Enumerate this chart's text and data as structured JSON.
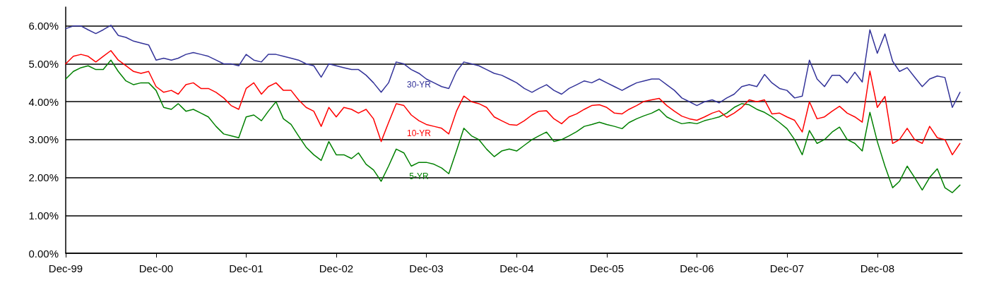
{
  "chart_data": {
    "type": "line",
    "x": [
      "1999-12",
      "2000-01",
      "2000-02",
      "2000-03",
      "2000-04",
      "2000-05",
      "2000-06",
      "2000-07",
      "2000-08",
      "2000-09",
      "2000-10",
      "2000-11",
      "2000-12",
      "2001-01",
      "2001-02",
      "2001-03",
      "2001-04",
      "2001-05",
      "2001-06",
      "2001-07",
      "2001-08",
      "2001-09",
      "2001-10",
      "2001-11",
      "2001-12",
      "2002-01",
      "2002-02",
      "2002-03",
      "2002-04",
      "2002-05",
      "2002-06",
      "2002-07",
      "2002-08",
      "2002-09",
      "2002-10",
      "2002-11",
      "2002-12",
      "2003-01",
      "2003-02",
      "2003-03",
      "2003-04",
      "2003-05",
      "2003-06",
      "2003-07",
      "2003-08",
      "2003-09",
      "2003-10",
      "2003-11",
      "2003-12",
      "2004-01",
      "2004-02",
      "2004-03",
      "2004-04",
      "2004-05",
      "2004-06",
      "2004-07",
      "2004-08",
      "2004-09",
      "2004-10",
      "2004-11",
      "2004-12",
      "2005-01",
      "2005-02",
      "2005-03",
      "2005-04",
      "2005-05",
      "2005-06",
      "2005-07",
      "2005-08",
      "2005-09",
      "2005-10",
      "2005-11",
      "2005-12",
      "2006-01",
      "2006-02",
      "2006-03",
      "2006-04",
      "2006-05",
      "2006-06",
      "2006-07",
      "2006-08",
      "2006-09",
      "2006-10",
      "2006-11",
      "2006-12",
      "2007-01",
      "2007-02",
      "2007-03",
      "2007-04",
      "2007-05",
      "2007-06",
      "2007-07",
      "2007-08",
      "2007-09",
      "2007-10",
      "2007-11",
      "2007-12",
      "2008-01",
      "2008-02",
      "2008-03",
      "2008-04",
      "2008-05",
      "2008-06",
      "2008-07",
      "2008-08",
      "2008-09",
      "2008-10",
      "2008-11",
      "2008-12",
      "2009-01",
      "2009-02",
      "2009-03",
      "2009-04",
      "2009-05",
      "2009-06",
      "2009-07",
      "2009-08",
      "2009-09",
      "2009-10",
      "2009-11"
    ],
    "series": [
      {
        "name": "30-YR",
        "color": "#333399",
        "values": [
          5.93,
          6.0,
          6.0,
          5.9,
          5.8,
          5.9,
          6.02,
          5.75,
          5.7,
          5.6,
          5.55,
          5.5,
          5.1,
          5.15,
          5.1,
          5.15,
          5.25,
          5.3,
          5.25,
          5.2,
          5.1,
          5.0,
          5.0,
          4.95,
          5.25,
          5.1,
          5.05,
          5.25,
          5.25,
          5.2,
          5.15,
          5.1,
          5.0,
          4.95,
          4.65,
          5.0,
          4.95,
          4.9,
          4.85,
          4.85,
          4.7,
          4.5,
          4.25,
          4.5,
          5.05,
          5.0,
          4.85,
          4.75,
          4.6,
          4.5,
          4.4,
          4.35,
          4.8,
          5.05,
          5.0,
          4.95,
          4.85,
          4.75,
          4.7,
          4.6,
          4.5,
          4.35,
          4.25,
          4.35,
          4.45,
          4.3,
          4.2,
          4.35,
          4.45,
          4.55,
          4.5,
          4.6,
          4.5,
          4.4,
          4.3,
          4.4,
          4.5,
          4.55,
          4.6,
          4.6,
          4.45,
          4.3,
          4.1,
          4.0,
          3.9,
          4.0,
          4.05,
          3.97,
          4.1,
          4.2,
          4.4,
          4.45,
          4.4,
          4.72,
          4.5,
          4.35,
          4.3,
          4.1,
          4.15,
          5.1,
          4.6,
          4.4,
          4.7,
          4.7,
          4.5,
          4.78,
          4.52,
          5.9,
          5.28,
          5.79,
          5.07,
          4.8,
          4.9,
          4.65,
          4.4,
          4.6,
          4.68,
          4.64,
          3.85,
          4.25
        ]
      },
      {
        "name": "10-YR",
        "color": "#ff0000",
        "values": [
          5.0,
          5.2,
          5.25,
          5.2,
          5.05,
          5.2,
          5.35,
          5.1,
          4.95,
          4.8,
          4.75,
          4.8,
          4.4,
          4.25,
          4.3,
          4.2,
          4.45,
          4.5,
          4.35,
          4.35,
          4.25,
          4.1,
          3.9,
          3.8,
          4.35,
          4.5,
          4.2,
          4.4,
          4.5,
          4.3,
          4.3,
          4.05,
          3.85,
          3.75,
          3.35,
          3.85,
          3.6,
          3.85,
          3.8,
          3.7,
          3.8,
          3.55,
          2.95,
          3.45,
          3.95,
          3.9,
          3.65,
          3.5,
          3.4,
          3.35,
          3.3,
          3.15,
          3.75,
          4.15,
          4.0,
          3.95,
          3.85,
          3.6,
          3.5,
          3.4,
          3.38,
          3.5,
          3.65,
          3.75,
          3.76,
          3.55,
          3.42,
          3.6,
          3.68,
          3.8,
          3.9,
          3.92,
          3.85,
          3.7,
          3.68,
          3.8,
          3.9,
          4.01,
          4.05,
          4.09,
          3.9,
          3.75,
          3.62,
          3.55,
          3.51,
          3.6,
          3.7,
          3.76,
          3.59,
          3.7,
          3.85,
          4.05,
          4.0,
          4.05,
          3.68,
          3.7,
          3.6,
          3.51,
          3.2,
          4.0,
          3.55,
          3.6,
          3.75,
          3.88,
          3.7,
          3.6,
          3.46,
          4.81,
          3.85,
          4.14,
          2.9,
          3.0,
          3.3,
          3.0,
          2.9,
          3.35,
          3.05,
          3.0,
          2.6,
          2.9
        ]
      },
      {
        "name": "5-YR",
        "color": "#008000",
        "values": [
          4.6,
          4.8,
          4.9,
          4.95,
          4.85,
          4.85,
          5.1,
          4.8,
          4.55,
          4.45,
          4.5,
          4.5,
          4.3,
          3.85,
          3.8,
          3.95,
          3.75,
          3.8,
          3.7,
          3.6,
          3.35,
          3.15,
          3.1,
          3.05,
          3.6,
          3.65,
          3.5,
          3.75,
          4.0,
          3.55,
          3.4,
          3.1,
          2.8,
          2.6,
          2.45,
          2.95,
          2.6,
          2.6,
          2.5,
          2.65,
          2.35,
          2.2,
          1.9,
          2.3,
          2.75,
          2.65,
          2.3,
          2.4,
          2.4,
          2.35,
          2.25,
          2.1,
          2.7,
          3.3,
          3.1,
          3.0,
          2.75,
          2.55,
          2.7,
          2.75,
          2.7,
          2.85,
          3.0,
          3.1,
          3.2,
          2.95,
          3.0,
          3.1,
          3.21,
          3.35,
          3.4,
          3.46,
          3.4,
          3.35,
          3.29,
          3.45,
          3.55,
          3.63,
          3.7,
          3.8,
          3.6,
          3.5,
          3.42,
          3.45,
          3.42,
          3.5,
          3.55,
          3.6,
          3.7,
          3.85,
          3.95,
          3.92,
          3.8,
          3.72,
          3.6,
          3.45,
          3.29,
          3.0,
          2.6,
          3.24,
          2.9,
          3.0,
          3.2,
          3.33,
          3.0,
          2.9,
          2.7,
          3.72,
          2.95,
          2.3,
          1.73,
          1.9,
          2.3,
          2.0,
          1.67,
          2.0,
          2.23,
          1.73,
          1.6,
          1.8
        ]
      }
    ],
    "xlim": [
      "1999-12",
      "2009-11-10"
    ],
    "xticks": [
      {
        "value": "1999-12",
        "label": "Dec-99"
      },
      {
        "value": "2000-12",
        "label": "Dec-00"
      },
      {
        "value": "2001-12",
        "label": "Dec-01"
      },
      {
        "value": "2002-12",
        "label": "Dec-02"
      },
      {
        "value": "2003-12",
        "label": "Dec-03"
      },
      {
        "value": "2004-12",
        "label": "Dec-04"
      },
      {
        "value": "2005-12",
        "label": "Dec-05"
      },
      {
        "value": "2006-12",
        "label": "Dec-06"
      },
      {
        "value": "2007-12",
        "label": "Dec-07"
      },
      {
        "value": "2008-12",
        "label": "Dec-08"
      }
    ],
    "ylim": [
      0,
      6.5
    ],
    "yticks": [
      {
        "value": 0,
        "label": "0.00%"
      },
      {
        "value": 1,
        "label": "1.00%"
      },
      {
        "value": 2,
        "label": "2.00%"
      },
      {
        "value": 3,
        "label": "3.00%"
      },
      {
        "value": 4,
        "label": "4.00%"
      },
      {
        "value": 5,
        "label": "5.00%"
      },
      {
        "value": 6,
        "label": "6.00%"
      }
    ],
    "grid": "y",
    "marker": "none",
    "line_style": "solid"
  }
}
